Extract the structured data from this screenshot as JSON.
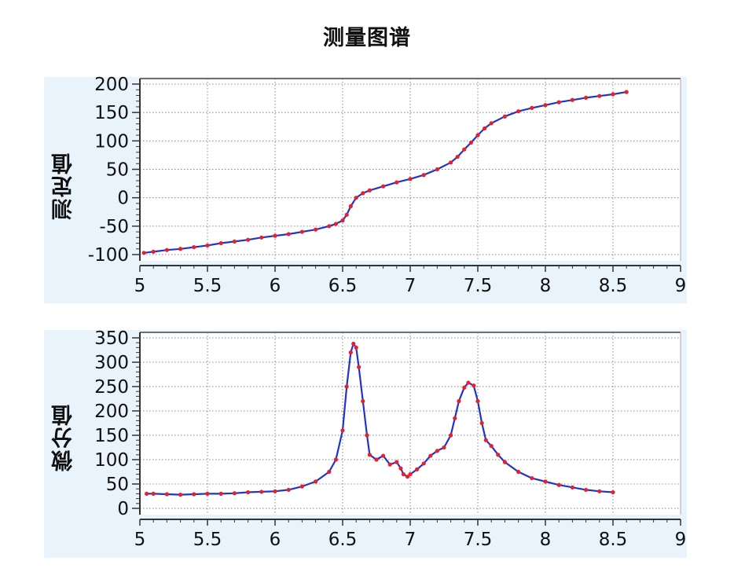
{
  "title": "测量图谱",
  "colors": {
    "line": "#2233cc",
    "marker": "#e8202a",
    "panel_bg": "#e8f3fc",
    "grid": "#888888"
  },
  "chart_data": [
    {
      "type": "line",
      "ylabel": "测定值",
      "xlim": [
        5,
        9
      ],
      "ylim": [
        -100,
        200
      ],
      "xticks": [
        5,
        5.5,
        6,
        6.5,
        7,
        7.5,
        8,
        8.5,
        9
      ],
      "yticks": [
        -100,
        -50,
        0,
        50,
        100,
        150,
        200
      ],
      "grid": true,
      "series": [
        {
          "x": [
            5.03,
            5.1,
            5.2,
            5.3,
            5.4,
            5.5,
            5.6,
            5.7,
            5.8,
            5.9,
            6.0,
            6.1,
            6.2,
            6.3,
            6.4,
            6.45,
            6.5,
            6.53,
            6.56,
            6.6,
            6.65,
            6.7,
            6.8,
            6.9,
            7.0,
            7.1,
            7.2,
            7.3,
            7.35,
            7.4,
            7.45,
            7.5,
            7.55,
            7.6,
            7.7,
            7.8,
            7.9,
            8.0,
            8.1,
            8.2,
            8.3,
            8.4,
            8.5,
            8.6
          ],
          "y": [
            -97,
            -95,
            -92,
            -90,
            -87,
            -84,
            -80,
            -77,
            -74,
            -70,
            -67,
            -64,
            -60,
            -56,
            -50,
            -46,
            -40,
            -30,
            -15,
            0,
            8,
            13,
            20,
            27,
            33,
            40,
            50,
            62,
            72,
            85,
            97,
            110,
            122,
            131,
            143,
            152,
            158,
            163,
            168,
            172,
            176,
            179,
            182,
            186
          ]
        }
      ]
    },
    {
      "type": "line",
      "ylabel": "微分值",
      "xlim": [
        5,
        9
      ],
      "ylim": [
        0,
        350
      ],
      "xticks": [
        5,
        5.5,
        6,
        6.5,
        7,
        7.5,
        8,
        8.5,
        9
      ],
      "yticks": [
        0,
        50,
        100,
        150,
        200,
        250,
        300,
        350
      ],
      "grid": true,
      "series": [
        {
          "x": [
            5.05,
            5.1,
            5.2,
            5.3,
            5.4,
            5.5,
            5.6,
            5.7,
            5.8,
            5.9,
            6.0,
            6.1,
            6.2,
            6.3,
            6.4,
            6.45,
            6.5,
            6.53,
            6.56,
            6.58,
            6.6,
            6.62,
            6.65,
            6.68,
            6.7,
            6.75,
            6.8,
            6.85,
            6.9,
            6.93,
            6.95,
            6.98,
            7.0,
            7.05,
            7.1,
            7.15,
            7.2,
            7.25,
            7.3,
            7.33,
            7.36,
            7.4,
            7.43,
            7.47,
            7.5,
            7.53,
            7.56,
            7.6,
            7.65,
            7.7,
            7.8,
            7.9,
            8.0,
            8.1,
            8.2,
            8.3,
            8.4,
            8.5
          ],
          "y": [
            30,
            30,
            29,
            28,
            29,
            30,
            30,
            31,
            33,
            34,
            35,
            38,
            45,
            55,
            75,
            100,
            160,
            250,
            320,
            338,
            330,
            290,
            220,
            150,
            110,
            100,
            108,
            90,
            95,
            82,
            70,
            65,
            70,
            80,
            92,
            108,
            118,
            125,
            150,
            185,
            220,
            248,
            258,
            252,
            220,
            175,
            140,
            128,
            110,
            95,
            75,
            62,
            55,
            48,
            43,
            38,
            35,
            33
          ]
        }
      ]
    }
  ]
}
